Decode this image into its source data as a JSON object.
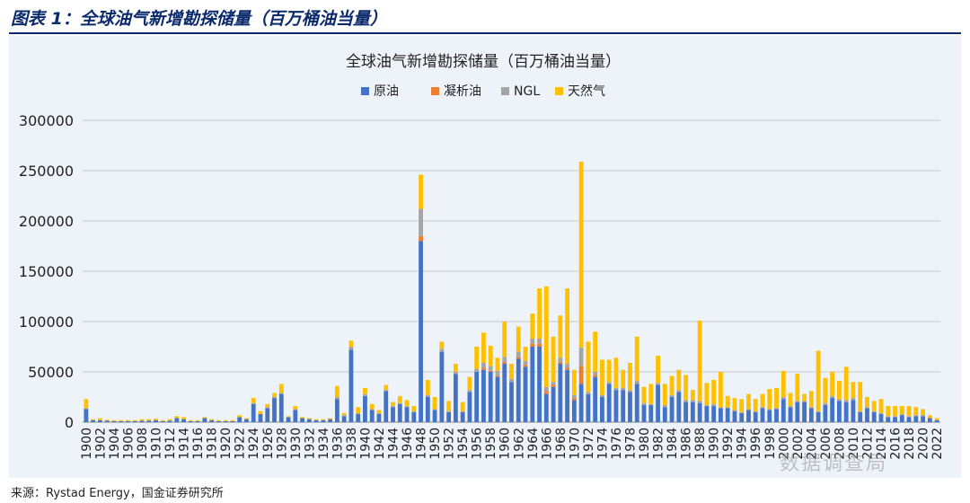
{
  "figure_title": "图表 1：全球油气新增勘探储量（百万桶油当量）",
  "source_note": "来源：Rystad Energy，国金证券研究所",
  "watermark": "数据调查局",
  "colors": {
    "crude": "#4472C4",
    "condensate": "#ED7D31",
    "ngl": "#A5A5A5",
    "gas": "#FFC000",
    "title": "#0b2a6b"
  },
  "chart_data": {
    "type": "bar",
    "stacked": true,
    "title": "全球油气新增勘探储量（百万桶油当量）",
    "legend_position": "top",
    "ylim": [
      0,
      300000
    ],
    "yticks": [
      0,
      50000,
      100000,
      150000,
      200000,
      250000,
      300000
    ],
    "ytick_labels": [
      "0",
      "50000",
      "100000",
      "150000",
      "200000",
      "250000",
      "300000"
    ],
    "grid": true,
    "x": [
      1900,
      1901,
      1902,
      1903,
      1904,
      1905,
      1906,
      1907,
      1908,
      1909,
      1910,
      1911,
      1912,
      1913,
      1914,
      1915,
      1916,
      1917,
      1918,
      1919,
      1920,
      1921,
      1922,
      1923,
      1924,
      1925,
      1926,
      1927,
      1928,
      1929,
      1930,
      1931,
      1932,
      1933,
      1934,
      1935,
      1936,
      1937,
      1938,
      1939,
      1940,
      1941,
      1942,
      1943,
      1944,
      1945,
      1946,
      1947,
      1948,
      1949,
      1950,
      1951,
      1952,
      1953,
      1954,
      1955,
      1956,
      1957,
      1958,
      1959,
      1960,
      1961,
      1962,
      1963,
      1964,
      1965,
      1966,
      1967,
      1968,
      1969,
      1970,
      1971,
      1972,
      1973,
      1974,
      1975,
      1976,
      1977,
      1978,
      1979,
      1980,
      1981,
      1982,
      1983,
      1984,
      1985,
      1986,
      1987,
      1988,
      1989,
      1990,
      1991,
      1992,
      1993,
      1994,
      1995,
      1996,
      1997,
      1998,
      1999,
      2000,
      2001,
      2002,
      2003,
      2004,
      2005,
      2006,
      2007,
      2008,
      2009,
      2010,
      2011,
      2012,
      2013,
      2014,
      2015,
      2016,
      2017,
      2018,
      2019,
      2020,
      2021,
      2022
    ],
    "xtick_labels": [
      "1900",
      "1902",
      "1904",
      "1906",
      "1908",
      "1910",
      "1912",
      "1914",
      "1916",
      "1918",
      "1920",
      "1922",
      "1924",
      "1926",
      "1928",
      "1930",
      "1932",
      "1934",
      "1936",
      "1938",
      "1940",
      "1942",
      "1944",
      "1946",
      "1948",
      "1950",
      "1952",
      "1954",
      "1956",
      "1958",
      "1960",
      "1962",
      "1964",
      "1966",
      "1968",
      "1970",
      "1972",
      "1974",
      "1976",
      "1978",
      "1980",
      "1982",
      "1984",
      "1986",
      "1988",
      "1990",
      "1992",
      "1994",
      "1996",
      "1998",
      "2000",
      "2002",
      "2004",
      "2006",
      "2008",
      "2010",
      "2012",
      "2014",
      "2016",
      "2018",
      "2020",
      "2022"
    ],
    "series": [
      {
        "name": "原油",
        "color": "#4472C4",
        "values": [
          13000,
          2000,
          2000,
          1500,
          1000,
          1000,
          1000,
          1000,
          1500,
          1500,
          2000,
          1000,
          1500,
          4000,
          3000,
          1000,
          1000,
          4000,
          2000,
          1000,
          1000,
          1000,
          5000,
          3000,
          18000,
          8000,
          14000,
          24000,
          28000,
          5000,
          12000,
          4000,
          3000,
          2000,
          2000,
          3000,
          23000,
          6000,
          72000,
          8000,
          26000,
          12000,
          8000,
          31000,
          15000,
          18000,
          15000,
          10000,
          180000,
          25000,
          12000,
          70000,
          10000,
          48000,
          10000,
          30000,
          50000,
          52000,
          50000,
          45000,
          58000,
          40000,
          63000,
          55000,
          75000,
          75000,
          28000,
          35000,
          58000,
          52000,
          22000,
          38000,
          28000,
          45000,
          25000,
          38000,
          32000,
          32000,
          30000,
          38000,
          17000,
          17000,
          37000,
          15000,
          25000,
          30000,
          20000,
          20000,
          19000,
          16000,
          16000,
          14000,
          14000,
          11000,
          9000,
          12000,
          10000,
          14000,
          12000,
          13000,
          23000,
          15000,
          20000,
          20000,
          14000,
          10000,
          17000,
          24000,
          21000,
          20000,
          22000,
          10000,
          14000,
          10000,
          8000,
          5000,
          5000,
          7000,
          5000,
          6000,
          6000,
          4000,
          2000
        ]
      },
      {
        "name": "凝析油",
        "color": "#ED7D31",
        "values": [
          0,
          0,
          0,
          0,
          0,
          0,
          0,
          0,
          0,
          0,
          0,
          0,
          0,
          0,
          0,
          0,
          0,
          0,
          0,
          0,
          0,
          0,
          0,
          0,
          0,
          0,
          0,
          0,
          0,
          0,
          0,
          0,
          0,
          0,
          0,
          0,
          0,
          0,
          0,
          0,
          0,
          0,
          0,
          0,
          0,
          0,
          0,
          0,
          5000,
          0,
          0,
          0,
          0,
          0,
          0,
          0,
          0,
          2000,
          1000,
          1000,
          2000,
          0,
          2000,
          2000,
          3000,
          3000,
          3000,
          2000,
          2000,
          2000,
          2000,
          18000,
          0,
          2000,
          0,
          0,
          0,
          0,
          0,
          0,
          0,
          0,
          0,
          0,
          0,
          0,
          0,
          0,
          0,
          0,
          0,
          0,
          0,
          0,
          0,
          0,
          0,
          0,
          0,
          0,
          0,
          0,
          0,
          0,
          0,
          0,
          0,
          0,
          0,
          0,
          0,
          0,
          0,
          0,
          0,
          0,
          0,
          0,
          0,
          0,
          0,
          0,
          0
        ]
      },
      {
        "name": "NGL",
        "color": "#A5A5A5",
        "values": [
          1000,
          0,
          0,
          0,
          0,
          0,
          0,
          0,
          0,
          0,
          0,
          0,
          0,
          0,
          0,
          0,
          0,
          0,
          0,
          0,
          0,
          0,
          0,
          0,
          1000,
          0,
          1000,
          1000,
          1000,
          0,
          1000,
          0,
          0,
          0,
          0,
          0,
          2000,
          1000,
          3000,
          1000,
          2000,
          1000,
          1000,
          1000,
          1000,
          1000,
          1000,
          1000,
          27000,
          2000,
          1000,
          3000,
          1000,
          2000,
          1000,
          2000,
          3000,
          5000,
          5000,
          5000,
          5000,
          3000,
          5000,
          4000,
          5000,
          5000,
          4000,
          3000,
          4000,
          4000,
          3000,
          18000,
          2000,
          3000,
          2000,
          2000,
          2000,
          2000,
          2000,
          3000,
          2000,
          1000,
          2000,
          2000,
          2000,
          2000,
          2000,
          2000,
          2000,
          1000,
          2000,
          1000,
          1000,
          1000,
          1000,
          1000,
          1000,
          1000,
          1000,
          1000,
          2000,
          1000,
          1000,
          1000,
          1000,
          1000,
          2000,
          2000,
          2000,
          2000,
          2000,
          1000,
          1000,
          1000,
          1000,
          1000,
          1000,
          1000,
          1000,
          1000,
          1000,
          0,
          0
        ]
      },
      {
        "name": "天然气",
        "color": "#FFC000",
        "values": [
          9000,
          1000,
          2000,
          1000,
          1000,
          1000,
          1000,
          1000,
          1500,
          1500,
          1500,
          1000,
          1500,
          2000,
          2000,
          1000,
          1000,
          1000,
          1000,
          1000,
          1000,
          1000,
          2000,
          1000,
          5000,
          3000,
          3000,
          4000,
          9000,
          1000,
          3000,
          1000,
          1000,
          1000,
          1000,
          1000,
          11000,
          2000,
          6000,
          6000,
          6000,
          5000,
          3000,
          5000,
          4000,
          7000,
          6000,
          5000,
          34000,
          15000,
          12000,
          7000,
          10000,
          8000,
          9000,
          13000,
          22000,
          30000,
          20000,
          13000,
          35000,
          15000,
          25000,
          14000,
          25000,
          50000,
          100000,
          45000,
          42000,
          75000,
          25000,
          185000,
          50000,
          40000,
          35000,
          22000,
          30000,
          18000,
          27000,
          44000,
          16000,
          20000,
          27000,
          21000,
          19000,
          20000,
          25000,
          10000,
          80000,
          22000,
          24000,
          35000,
          11000,
          12000,
          13000,
          15000,
          12000,
          13000,
          20000,
          20000,
          26000,
          13000,
          27000,
          7000,
          16000,
          60000,
          25000,
          24000,
          18000,
          33000,
          16000,
          29000,
          10000,
          10000,
          14000,
          10000,
          10000,
          8000,
          10000,
          8000,
          6000,
          3000,
          2000
        ]
      }
    ]
  }
}
